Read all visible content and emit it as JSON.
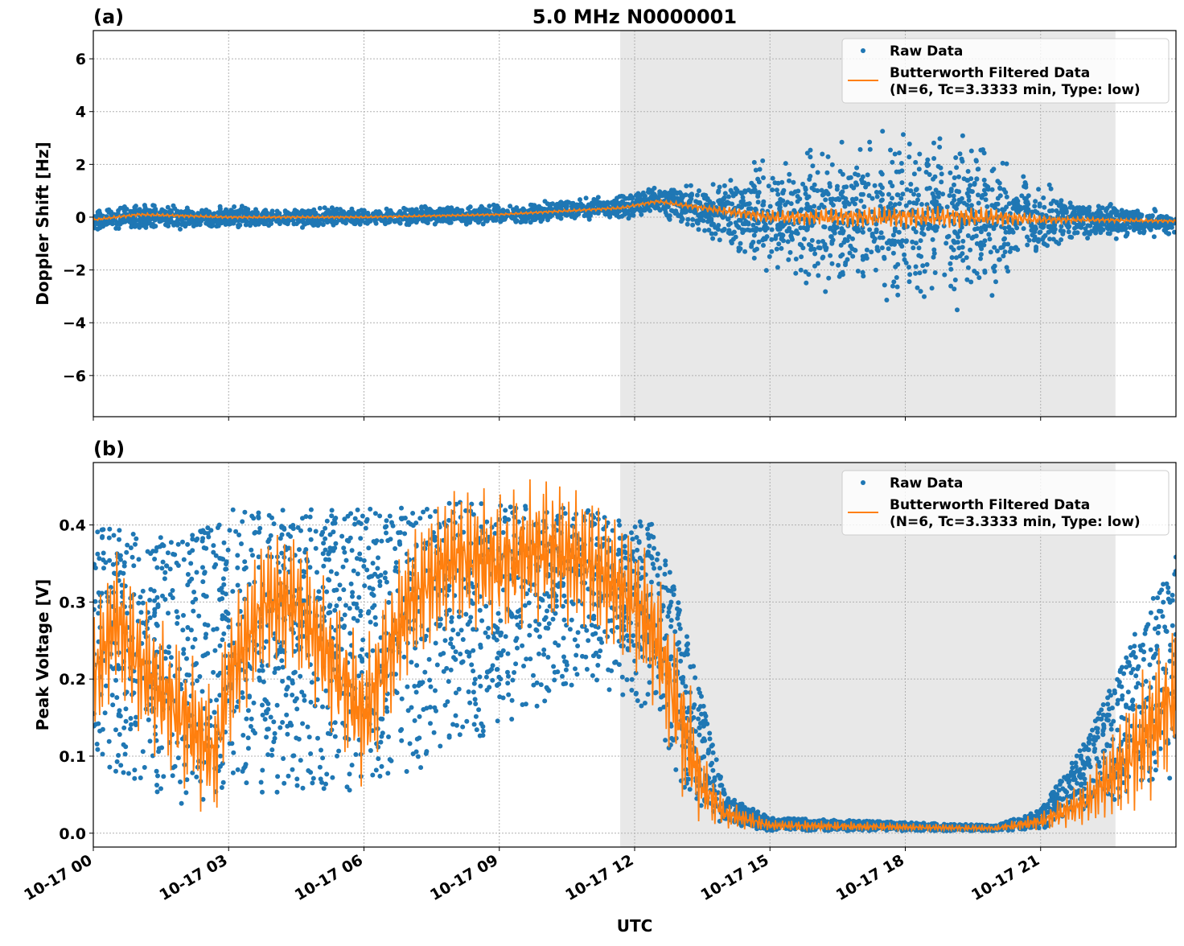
{
  "chart_data": [
    {
      "type": "scatter",
      "panel_label": "(a)",
      "title": "5.0 MHz N0000001",
      "xlabel": "",
      "ylabel": "Doppler Shift [Hz]",
      "xlim_hours_utc": [
        0,
        24
      ],
      "ylim": [
        -7.56,
        7.07
      ],
      "yticks": [
        -6,
        -4,
        -2,
        0,
        2,
        4,
        6
      ],
      "ytick_labels": [
        "−6",
        "−4",
        "−2",
        "0",
        "2",
        "4",
        "6"
      ],
      "grid": true,
      "legend_placement": "upper-right",
      "shaded_interval_hours_utc": [
        11.68,
        22.66
      ],
      "shade_color": "#e8e8e8",
      "series": [
        {
          "name": "Raw Data",
          "kind": "points",
          "color": "#1f77b4",
          "envelope": {
            "hours": [
              0,
              1,
              3,
              6,
              9,
              11.7,
              12.5,
              13.5,
              15,
              17,
              18.5,
              20,
              21,
              22,
              24
            ],
            "center": [
              -0.1,
              0,
              0,
              0,
              0.1,
              0.4,
              0.6,
              0.3,
              0,
              0,
              0,
              0,
              -0.1,
              -0.1,
              -0.2
            ],
            "halfwidth": [
              0.35,
              0.4,
              0.35,
              0.3,
              0.3,
              0.4,
              0.5,
              0.8,
              1.8,
              2.8,
              3,
              2.5,
              1.2,
              0.6,
              0.4
            ]
          }
        },
        {
          "name": "Butterworth Filtered Data\n(N=6, Tc=3.3333 min, Type: low)",
          "kind": "line",
          "color": "#ff7f0e",
          "hours": [
            0,
            1,
            3,
            6,
            9,
            11.7,
            12.5,
            13.5,
            15,
            17,
            18.5,
            20,
            21,
            22,
            24
          ],
          "values": [
            -0.1,
            0.1,
            0,
            0,
            0.1,
            0.35,
            0.6,
            0.35,
            0,
            0,
            0,
            0,
            -0.1,
            -0.1,
            -0.15
          ]
        }
      ]
    },
    {
      "type": "scatter",
      "panel_label": "(b)",
      "title": "",
      "xlabel": "UTC",
      "ylabel": "Peak Voltage [V]",
      "xlim_hours_utc": [
        0,
        24
      ],
      "ylim": [
        -0.018,
        0.481
      ],
      "yticks": [
        0.0,
        0.1,
        0.2,
        0.3,
        0.4
      ],
      "ytick_labels": [
        "0.0",
        "0.1",
        "0.2",
        "0.3",
        "0.4"
      ],
      "xticks_hours": [
        0,
        3,
        6,
        9,
        12,
        15,
        18,
        21
      ],
      "xtick_labels": [
        "10-17 00",
        "10-17 03",
        "10-17 06",
        "10-17 09",
        "10-17 12",
        "10-17 15",
        "10-17 18",
        "10-17 21"
      ],
      "grid": true,
      "legend_placement": "upper-right",
      "shaded_interval_hours_utc": [
        11.68,
        22.66
      ],
      "shade_color": "#e8e8e8",
      "series": [
        {
          "name": "Raw Data",
          "kind": "points",
          "color": "#1f77b4",
          "envelope": {
            "hours": [
              0,
              2,
              3,
              6,
              8,
              11,
              12.5,
              13,
              14,
              15,
              20,
              21,
              22,
              23,
              24
            ],
            "low": [
              0.08,
              0.03,
              0.05,
              0.05,
              0.1,
              0.2,
              0.15,
              0.05,
              0.01,
              0.003,
              0.003,
              0.005,
              0.03,
              0.04,
              0.06
            ],
            "high": [
              0.4,
              0.38,
              0.42,
              0.42,
              0.43,
              0.42,
              0.4,
              0.3,
              0.05,
              0.02,
              0.01,
              0.03,
              0.12,
              0.25,
              0.36
            ]
          }
        },
        {
          "name": "Butterworth Filtered Data\n(N=6, Tc=3.3333 min, Type: low)",
          "kind": "line",
          "color": "#ff7f0e",
          "hours": [
            0,
            0.5,
            1,
            2,
            2.7,
            3,
            3.8,
            4.5,
            5,
            6,
            7,
            8,
            9,
            10,
            11,
            12,
            12.5,
            13,
            13.5,
            14,
            15,
            20,
            21,
            22,
            23,
            24
          ],
          "values": [
            0.2,
            0.28,
            0.22,
            0.15,
            0.1,
            0.2,
            0.3,
            0.3,
            0.25,
            0.15,
            0.3,
            0.36,
            0.35,
            0.37,
            0.35,
            0.3,
            0.25,
            0.15,
            0.06,
            0.025,
            0.01,
            0.006,
            0.015,
            0.04,
            0.1,
            0.18
          ]
        }
      ]
    }
  ]
}
